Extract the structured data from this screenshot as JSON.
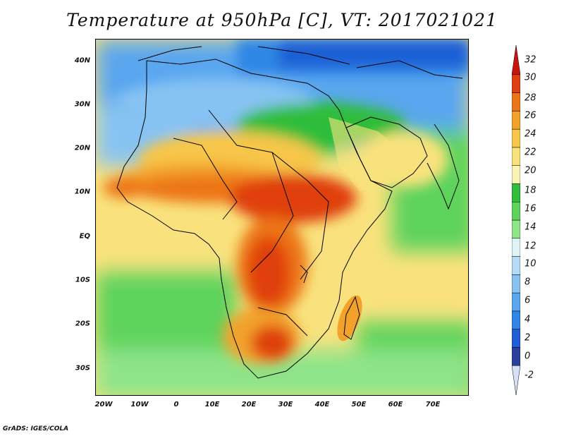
{
  "title": "Temperature at 950hPa [C], VT: 2017021021",
  "credit": "GrADS: IGES/COLA",
  "map": {
    "lat_labels": [
      "40N",
      "30N",
      "20N",
      "10N",
      "EQ",
      "10S",
      "20S",
      "30S"
    ],
    "lon_labels": [
      "20W",
      "10W",
      "0",
      "10E",
      "20E",
      "30E",
      "40E",
      "50E",
      "60E",
      "70E"
    ]
  },
  "colorbar": {
    "units": "C",
    "labels": [
      "32",
      "30",
      "28",
      "26",
      "24",
      "22",
      "20",
      "18",
      "16",
      "14",
      "12",
      "10",
      "8",
      "6",
      "4",
      "2",
      "0",
      "-2"
    ],
    "colors": [
      "#d7e1f5",
      "#2b3f9e",
      "#1f5ed6",
      "#2f86e6",
      "#5aa6ef",
      "#86c3f3",
      "#b4dcf7",
      "#dcf4f6",
      "#8ee489",
      "#5dd35b",
      "#2fbd3a",
      "#faf4b4",
      "#f9e27d",
      "#f7c64a",
      "#f2a12b",
      "#ec7518",
      "#e0400f",
      "#c8140c"
    ]
  }
}
